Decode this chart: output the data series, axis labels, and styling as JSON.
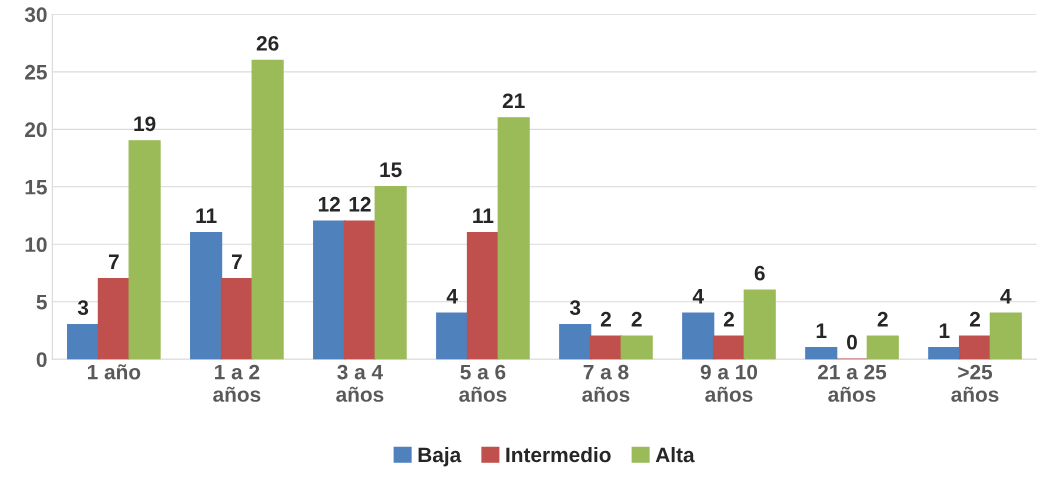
{
  "chart_data": {
    "type": "bar",
    "categories": [
      "1 año",
      "1 a 2\naños",
      "3 a 4\naños",
      "5 a 6\naños",
      "7 a 8\naños",
      "9 a 10\naños",
      "21 a 25\naños",
      ">25\naños"
    ],
    "series": [
      {
        "name": "Baja",
        "color": "#4f81bd",
        "values": [
          3,
          11,
          12,
          4,
          3,
          4,
          1,
          1
        ]
      },
      {
        "name": "Intermedio",
        "color": "#c0504d",
        "values": [
          7,
          7,
          12,
          11,
          2,
          2,
          0,
          2
        ]
      },
      {
        "name": "Alta",
        "color": "#9bbb59",
        "values": [
          19,
          26,
          15,
          21,
          2,
          6,
          2,
          4
        ]
      }
    ],
    "ylim": [
      0,
      30
    ],
    "yticks": [
      0,
      5,
      10,
      15,
      20,
      25,
      30
    ],
    "grid": "y",
    "legend": "bottom",
    "data_labels": true
  }
}
